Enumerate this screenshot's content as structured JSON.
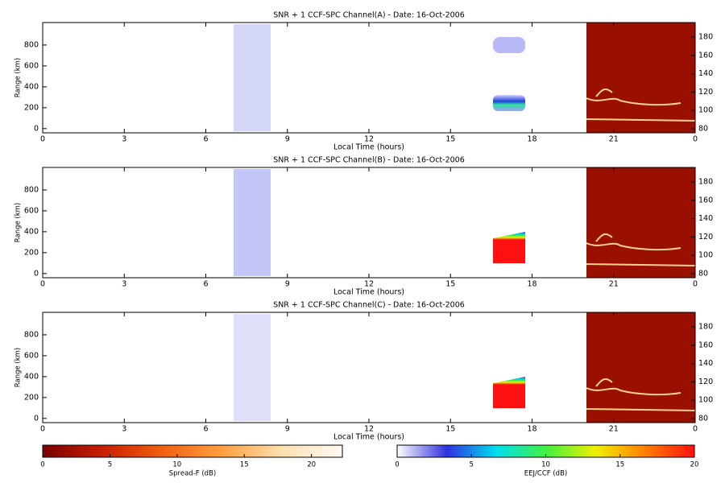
{
  "chart_data": [
    {
      "type": "heatmap",
      "title": "SNR + 1 CCF-SPC Channel(A) - Date: 16-Oct-2006",
      "x_label": "Local Time (hours)",
      "y_label": "Range (km)",
      "xlim": [
        0,
        24
      ],
      "xticks": [
        0,
        3,
        6,
        9,
        12,
        15,
        18,
        21,
        {
          "value": 24,
          "label": "0"
        }
      ],
      "ylim": [
        -40,
        1015
      ],
      "yticks": [
        0,
        200,
        400,
        600,
        800
      ],
      "y2lim": [
        75.6,
        195.8
      ],
      "y2ticks": [
        80,
        100,
        120,
        140,
        160,
        180
      ]
    },
    {
      "type": "heatmap",
      "title": "SNR + 1 CCF-SPC Channel(B) - Date: 16-Oct-2006",
      "x_label": "Local Time (hours)",
      "y_label": "Range (km)",
      "xlim": [
        0,
        24
      ],
      "xticks": [
        0,
        3,
        6,
        9,
        12,
        15,
        18,
        21,
        {
          "value": 24,
          "label": "0"
        }
      ],
      "ylim": [
        -40,
        1015
      ],
      "yticks": [
        0,
        200,
        400,
        600,
        800
      ],
      "y2lim": [
        75.6,
        195.8
      ],
      "y2ticks": [
        80,
        100,
        120,
        140,
        160,
        180
      ]
    },
    {
      "type": "heatmap",
      "title": "SNR + 1 CCF-SPC Channel(C) - Date: 16-Oct-2006",
      "x_label": "Local Time (hours)",
      "y_label": "Range (km)",
      "xlim": [
        0,
        24
      ],
      "xticks": [
        0,
        3,
        6,
        9,
        12,
        15,
        18,
        21,
        {
          "value": 24,
          "label": "0"
        }
      ],
      "ylim": [
        -40,
        1015
      ],
      "yticks": [
        0,
        200,
        400,
        600,
        800
      ],
      "y2lim": [
        75.6,
        195.8
      ],
      "y2ticks": [
        80,
        100,
        120,
        140,
        160,
        180
      ]
    },
    {
      "type": "colorbar",
      "label": "Spread-F (dB)",
      "xlim": [
        0,
        22.3
      ],
      "xticks": [
        0,
        5,
        10,
        15,
        20
      ],
      "colors": [
        "#7a0000",
        "#c81e00",
        "#f06010",
        "#ffa040",
        "#ffe0b0",
        "#fffaf5"
      ]
    },
    {
      "type": "colorbar",
      "label": "EEJ/CCF (dB)",
      "xlim": [
        0,
        20
      ],
      "xticks": [
        0,
        5,
        10,
        15,
        20
      ],
      "colors": [
        "#ffffff",
        "#3030e0",
        "#00e0f0",
        "#40f040",
        "#f0f000",
        "#ff8000",
        "#ff1010"
      ]
    }
  ]
}
